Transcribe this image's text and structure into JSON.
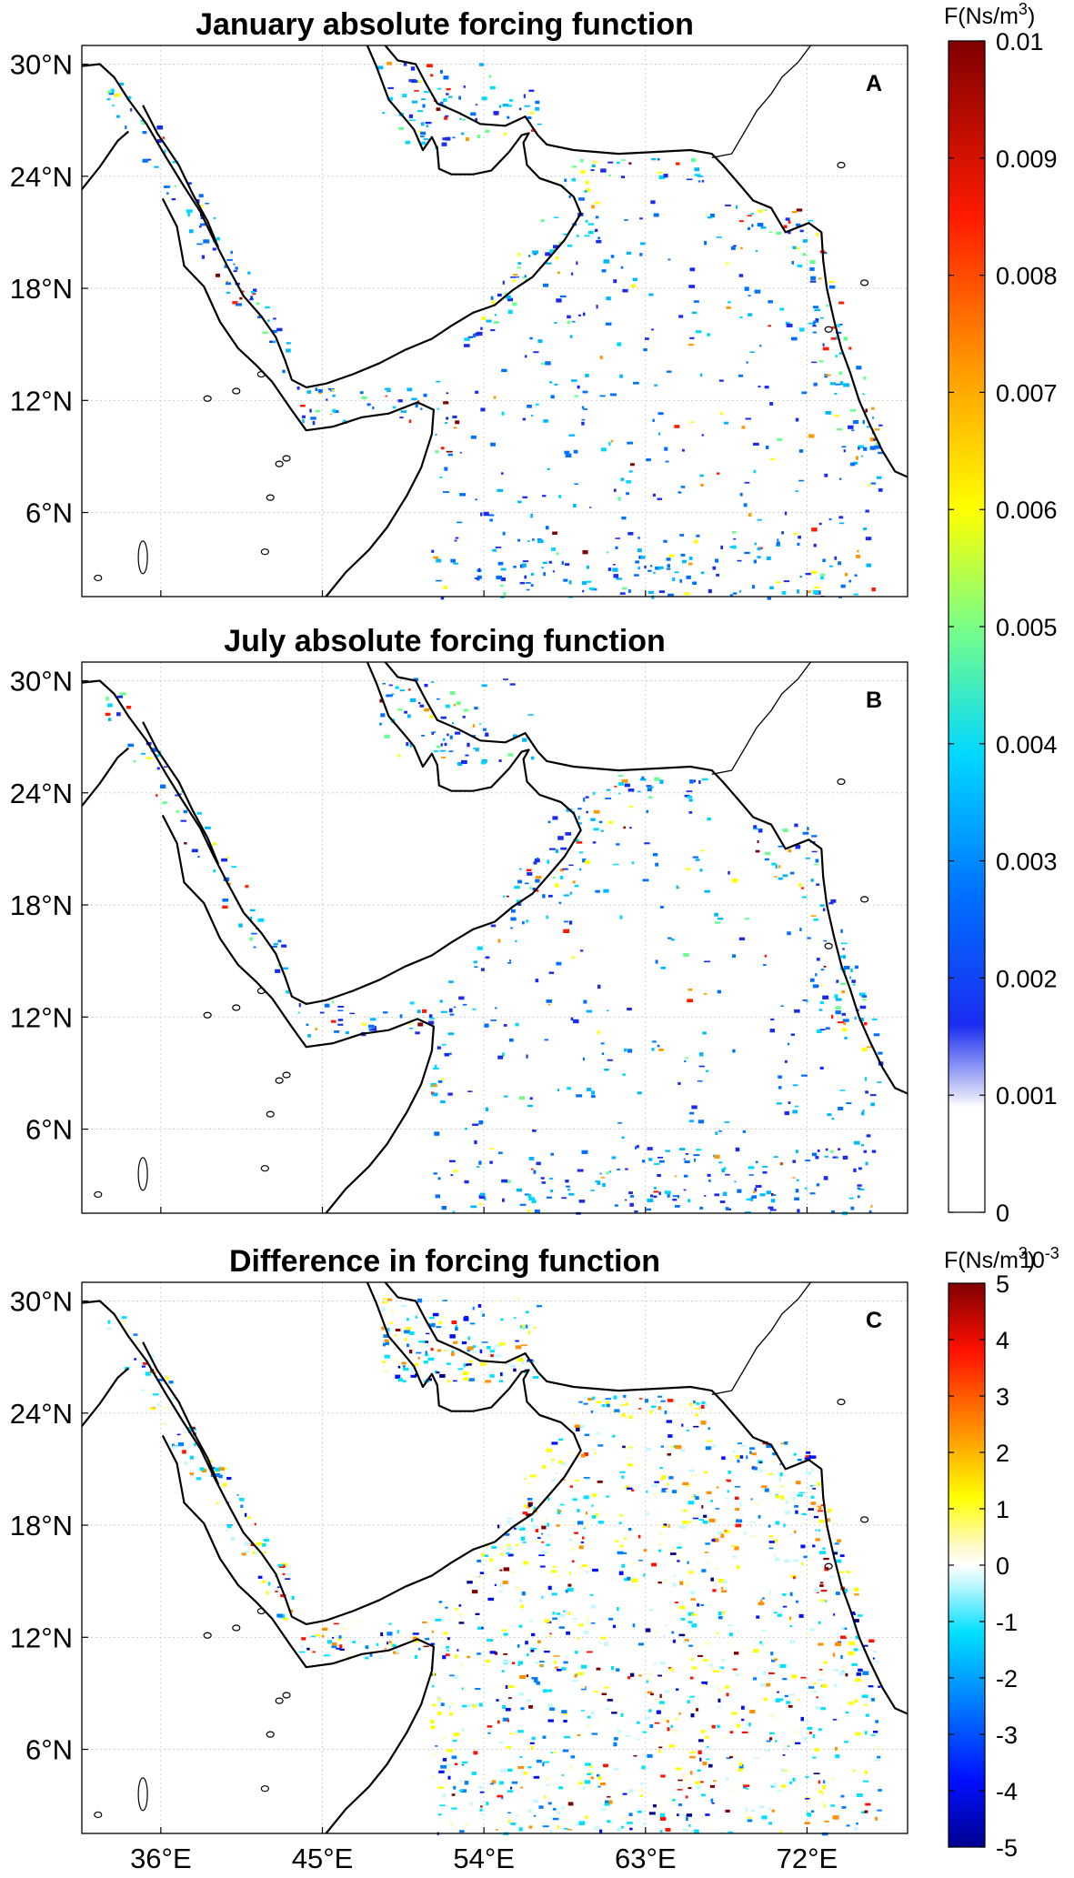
{
  "panels": [
    {
      "letter": "A",
      "title": "January absolute forcing function",
      "field": "absolute",
      "season": "jan"
    },
    {
      "letter": "B",
      "title": "July absolute forcing function",
      "field": "absolute",
      "season": "jul"
    },
    {
      "letter": "C",
      "title": "Difference in forcing function",
      "field": "difference"
    }
  ],
  "axes": {
    "lat_ticks": [
      "30°N",
      "24°N",
      "18°N",
      "12°N",
      "6°N"
    ],
    "lat_values": [
      30,
      24,
      18,
      12,
      6
    ],
    "lon_ticks": [
      "36°E",
      "45°E",
      "54°E",
      "63°E",
      "72°E"
    ],
    "lon_values": [
      36,
      45,
      54,
      63,
      72
    ],
    "lon_range": [
      31.6,
      77.6
    ],
    "lat_range": [
      1.5,
      31.0
    ],
    "grid": true,
    "grid_color": "#c8c8c8"
  },
  "colorbar_abs": {
    "label": "F(Ns/m",
    "label_sup": "3",
    "label_close": ")",
    "ticks": [
      "0.01",
      "0.009",
      "0.008",
      "0.007",
      "0.006",
      "0.005",
      "0.004",
      "0.003",
      "0.002",
      "0.001",
      "0"
    ],
    "values": [
      0.01,
      0.009,
      0.008,
      0.007,
      0.006,
      0.005,
      0.004,
      0.003,
      0.002,
      0.001,
      0
    ],
    "range": [
      0,
      0.01
    ],
    "colormap": "jet (white below 0.001)"
  },
  "colorbar_diff": {
    "label": "F(Ns/m",
    "label_sup": "3",
    "label_close": ")",
    "exponent_text": "10",
    "exponent_sup": "-3",
    "ticks": [
      "5",
      "4",
      "3",
      "2",
      "1",
      "0",
      "-1",
      "-2",
      "-3",
      "-4",
      "-5"
    ],
    "values": [
      5,
      4,
      3,
      2,
      1,
      0,
      -1,
      -2,
      -3,
      -4,
      -5
    ],
    "range": [
      -5,
      5
    ],
    "colormap": "diverging jet, white at 0"
  },
  "colors": {
    "coast": "#000000",
    "land": "#ffffff",
    "frame": "#000000"
  }
}
